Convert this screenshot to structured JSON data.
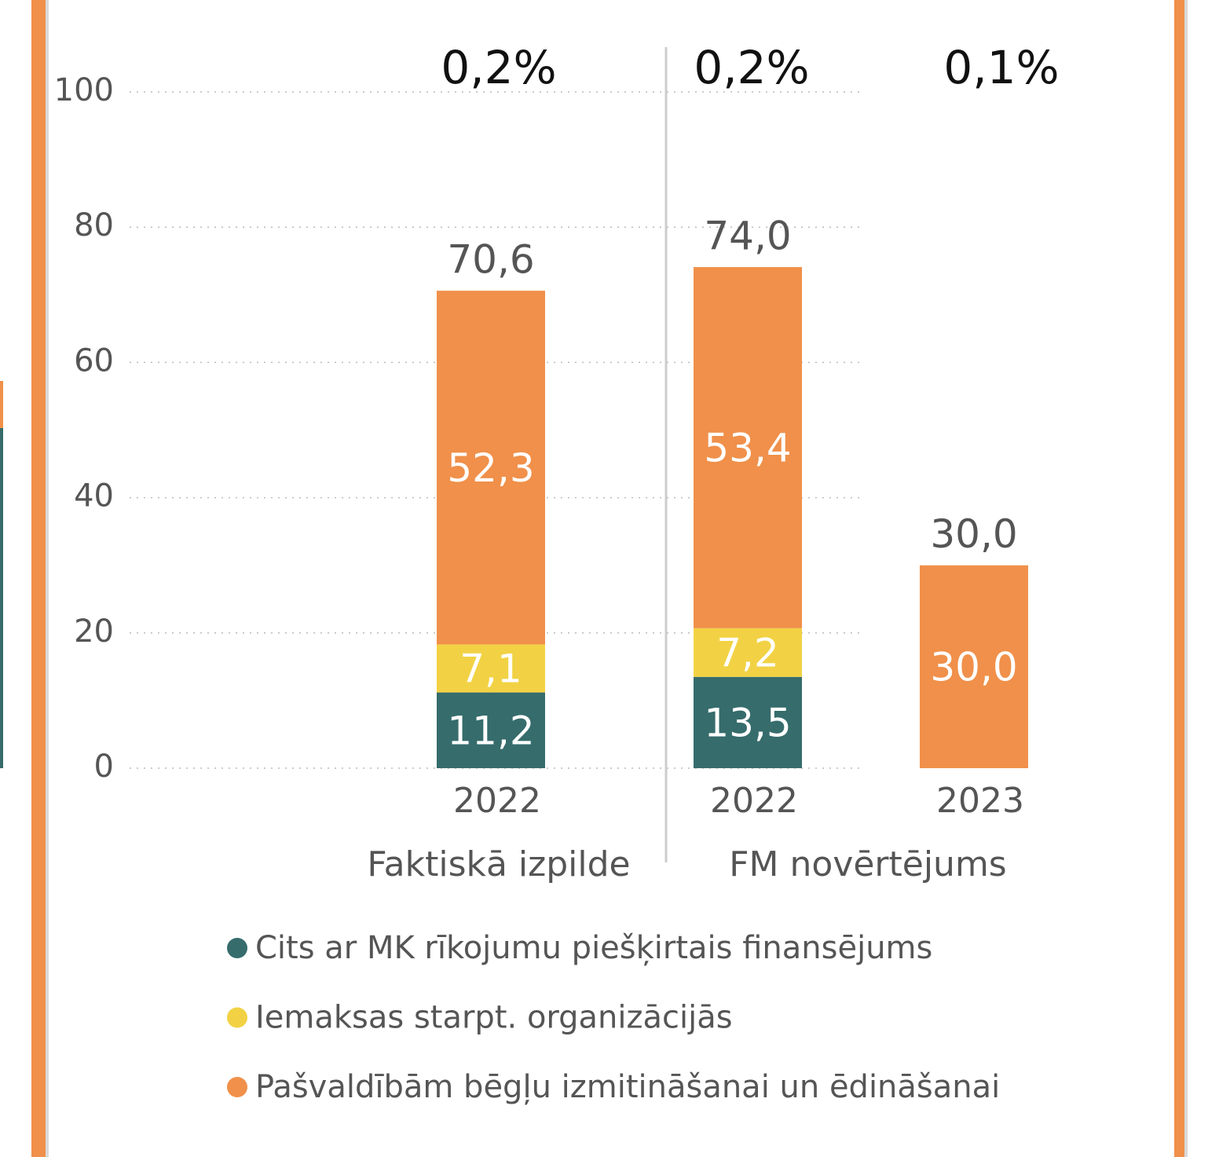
{
  "chart_data": {
    "type": "stacked_bar",
    "categories": [
      "2022",
      "2022",
      "2023"
    ],
    "groups": [
      "Faktiskā izpilde",
      "FM novērtējums"
    ],
    "top_labels": [
      "0,2%",
      "0,2%",
      "0,1%"
    ],
    "series": [
      {
        "name": "Cits ar MK rīkojumu piešķirtais finansējums",
        "color": "#366c6c",
        "values": [
          11.2,
          13.5,
          null
        ],
        "value_labels": [
          "11,2",
          "13,5",
          null
        ]
      },
      {
        "name": "Iemaksas starpt. organizācijās",
        "color": "#f2d244",
        "values": [
          7.1,
          7.2,
          null
        ],
        "value_labels": [
          "7,1",
          "7,2",
          null
        ]
      },
      {
        "name": "Pašvaldībām bēgļu izmitināšanai un ēdināšanai",
        "color": "#f0904a",
        "values": [
          52.3,
          53.4,
          30.0
        ],
        "value_labels": [
          "52,3",
          "53,4",
          "30,0"
        ]
      }
    ],
    "totals": {
      "values": [
        70.6,
        74.0,
        30.0
      ],
      "value_labels": [
        "70,6",
        "74,0",
        "30,0"
      ]
    },
    "ylim": [
      0,
      100
    ],
    "yticks": [
      0,
      20,
      40,
      60,
      80,
      100
    ],
    "grid": true
  }
}
